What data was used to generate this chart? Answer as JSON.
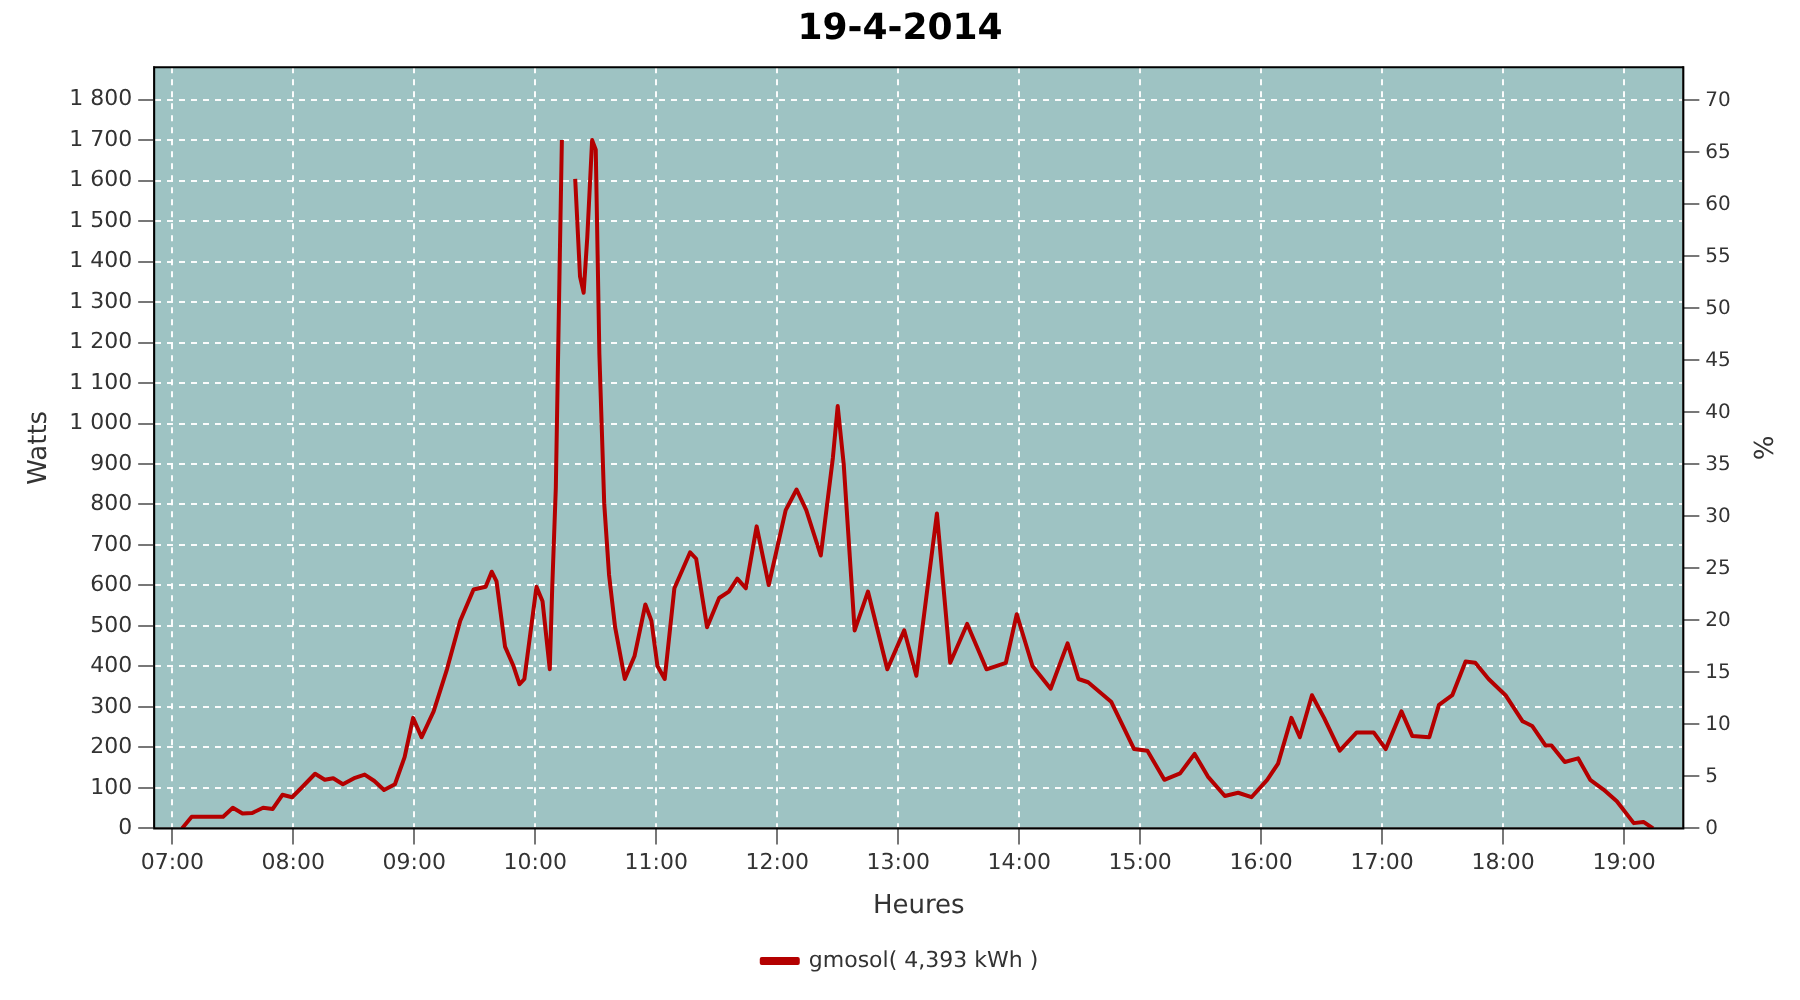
{
  "chart_data": {
    "type": "line",
    "title": "19-4-2014",
    "xlabel": "Heures",
    "ylabel": "Watts",
    "y2label": "%",
    "xlim": [
      6.85,
      19.49
    ],
    "xticks": [
      {
        "value": 7,
        "label": "07:00"
      },
      {
        "value": 8,
        "label": "08:00"
      },
      {
        "value": 9,
        "label": "09:00"
      },
      {
        "value": 10,
        "label": "10:00"
      },
      {
        "value": 11,
        "label": "11:00"
      },
      {
        "value": 12,
        "label": "12:00"
      },
      {
        "value": 13,
        "label": "13:00"
      },
      {
        "value": 14,
        "label": "14:00"
      },
      {
        "value": 15,
        "label": "15:00"
      },
      {
        "value": 16,
        "label": "16:00"
      },
      {
        "value": 17,
        "label": "17:00"
      },
      {
        "value": 18,
        "label": "18:00"
      },
      {
        "value": 19,
        "label": "19:00"
      }
    ],
    "ylim": [
      0,
      1880
    ],
    "yticks": [
      0,
      100,
      200,
      300,
      400,
      500,
      600,
      700,
      800,
      900,
      {
        "value": 1000,
        "label": "1 000"
      },
      {
        "value": 1100,
        "label": "1 100"
      },
      {
        "value": 1200,
        "label": "1 200"
      },
      {
        "value": 1300,
        "label": "1 300"
      },
      {
        "value": 1400,
        "label": "1 400"
      },
      {
        "value": 1500,
        "label": "1 500"
      },
      {
        "value": 1600,
        "label": "1 600"
      },
      {
        "value": 1700,
        "label": "1 700"
      },
      {
        "value": 1800,
        "label": "1 800"
      }
    ],
    "y2lim": [
      0,
      73.2
    ],
    "y2ticks": [
      0,
      5,
      10,
      15,
      20,
      25,
      30,
      35,
      40,
      45,
      50,
      55,
      60,
      65,
      70
    ],
    "grid": true,
    "legend": "bottom",
    "marker": "none",
    "line_style": "solid",
    "series": [
      {
        "name": "gmosol( 4,393 kWh )",
        "color": "#b40000",
        "x": [
          7.08,
          7.16,
          7.42,
          7.5,
          7.58,
          7.66,
          7.75,
          7.83,
          7.91,
          7.99,
          8.07,
          8.18,
          8.26,
          8.33,
          8.41,
          8.51,
          8.59,
          8.67,
          8.75,
          8.84,
          8.92,
          8.99,
          9.06,
          9.16,
          9.27,
          9.38,
          9.49,
          9.59,
          9.64,
          9.68,
          9.75,
          9.82,
          9.87,
          9.91,
          10.01,
          10.06,
          10.12,
          10.14,
          10.17,
          10.2,
          10.22,
          10.26,
          10.31,
          10.33,
          10.37,
          10.4,
          10.43,
          10.47,
          10.5,
          10.53,
          10.57,
          10.61,
          10.66,
          10.74,
          10.82,
          10.91,
          10.96,
          11.01,
          11.07,
          11.15,
          11.28,
          11.33,
          11.42,
          11.52,
          11.6,
          11.67,
          11.74,
          11.83,
          11.93,
          12.07,
          12.16,
          12.24,
          12.36,
          12.46,
          12.5,
          12.55,
          12.64,
          12.75,
          12.91,
          13.05,
          13.15,
          13.32,
          13.43,
          13.57,
          13.73,
          13.89,
          13.98,
          14.11,
          14.26,
          14.4,
          14.49,
          14.57,
          14.76,
          14.95,
          15.06,
          15.2,
          15.33,
          15.45,
          15.56,
          15.7,
          15.81,
          15.92,
          16.05,
          16.14,
          16.25,
          16.32,
          16.42,
          16.52,
          16.65,
          16.79,
          16.93,
          17.03,
          17.16,
          17.25,
          17.39,
          17.47,
          17.58,
          17.69,
          17.77,
          17.88,
          18.02,
          18.16,
          18.24,
          18.35,
          18.4,
          18.51,
          18.62,
          18.72,
          18.83,
          18.94,
          19.08,
          19.16,
          19.24
        ],
        "values": [
          0,
          29,
          29,
          51,
          37,
          38,
          51,
          48,
          83,
          77,
          101,
          135,
          120,
          124,
          109,
          125,
          133,
          117,
          95,
          109,
          176,
          273,
          225,
          289,
          393,
          513,
          590,
          597,
          634,
          610,
          449,
          401,
          356,
          369,
          597,
          561,
          393,
          593,
          842,
          1363,
          1700,
          null,
          null,
          1604,
          1363,
          1323,
          1460,
          1700,
          1676,
          1171,
          802,
          626,
          497,
          369,
          425,
          553,
          513,
          401,
          369,
          593,
          682,
          666,
          497,
          569,
          585,
          617,
          593,
          746,
          601,
          786,
          837,
          786,
          674,
          915,
          1043,
          898,
          489,
          585,
          393,
          489,
          377,
          778,
          409,
          505,
          393,
          409,
          529,
          401,
          345,
          457,
          369,
          361,
          313,
          196,
          192,
          120,
          136,
          184,
          128,
          80,
          88,
          77,
          120,
          160,
          273,
          225,
          329,
          273,
          192,
          237,
          237,
          196,
          289,
          228,
          225,
          305,
          329,
          412,
          409,
          369,
          329,
          265,
          253,
          205,
          205,
          164,
          173,
          120,
          96,
          67,
          13,
          16,
          0
        ]
      }
    ]
  }
}
